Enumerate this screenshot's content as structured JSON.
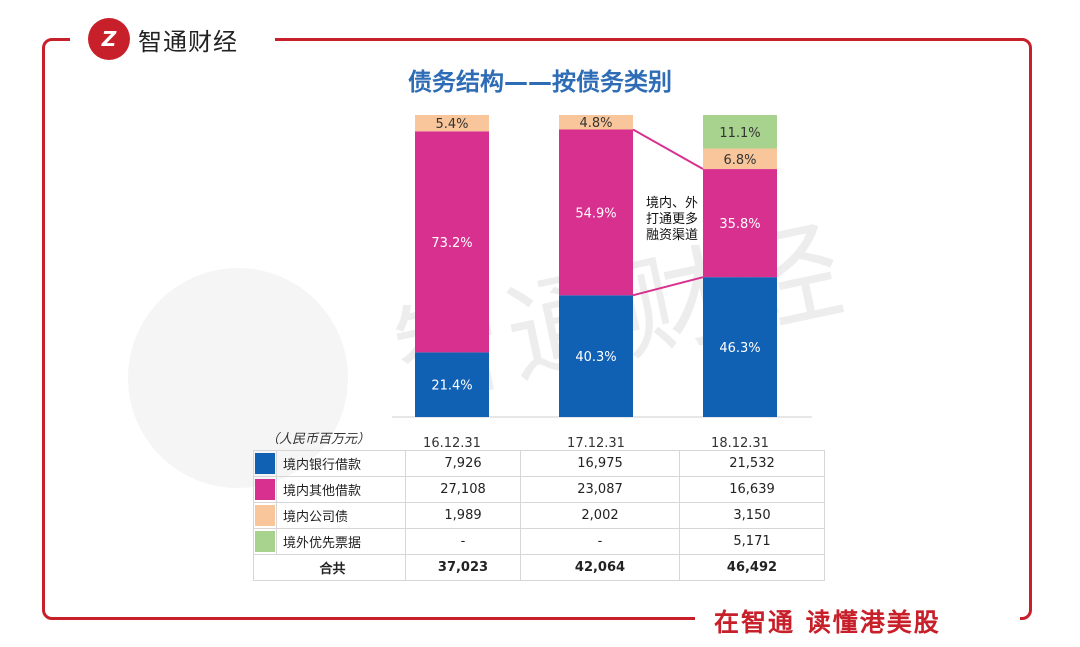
{
  "brand": {
    "logo_mark": "Z",
    "name": "智通财经",
    "slogan": "在智通 读懂港美股",
    "watermark": "智通财经"
  },
  "colors": {
    "accent": "#c8202a",
    "title": "#2e6db5",
    "domestic_bank": "#1060b4",
    "domestic_other": "#d8308e",
    "domestic_bond": "#f9c59a",
    "overseas_note": "#a8d38e"
  },
  "annotation": [
    "境内、外",
    "打通更多",
    "融资渠道"
  ],
  "chart_data": {
    "type": "bar",
    "stacked": true,
    "title": "债务结构——按债务类别",
    "unit_label": "（人民币百万元）",
    "categories": [
      "16.12.31",
      "17.12.31",
      "18.12.31"
    ],
    "series": [
      {
        "name": "境内银行借款",
        "color": "#1060b4",
        "percents": [
          21.4,
          40.3,
          46.3
        ],
        "labels": [
          "21.4%",
          "40.3%",
          "46.3%"
        ],
        "amounts": [
          "7,926",
          "16,975",
          "21,532"
        ]
      },
      {
        "name": "境内其他借款",
        "color": "#d8308e",
        "percents": [
          73.2,
          54.9,
          35.8
        ],
        "labels": [
          "73.2%",
          "54.9%",
          "35.8%"
        ],
        "amounts": [
          "27,108",
          "23,087",
          "16,639"
        ]
      },
      {
        "name": "境内公司债",
        "color": "#f9c59a",
        "percents": [
          5.4,
          4.8,
          6.8
        ],
        "labels": [
          "5.4%",
          "4.8%",
          "6.8%"
        ],
        "amounts": [
          "1,989",
          "2,002",
          "3,150"
        ]
      },
      {
        "name": "境外优先票据",
        "color": "#a8d38e",
        "percents": [
          0,
          0,
          11.1
        ],
        "labels": [
          "",
          "",
          "11.1%"
        ],
        "amounts": [
          "-",
          "-",
          "5,171"
        ]
      }
    ],
    "total_label": "合共",
    "totals": [
      "37,023",
      "42,064",
      "46,492"
    ],
    "ylim": [
      0,
      100
    ]
  }
}
